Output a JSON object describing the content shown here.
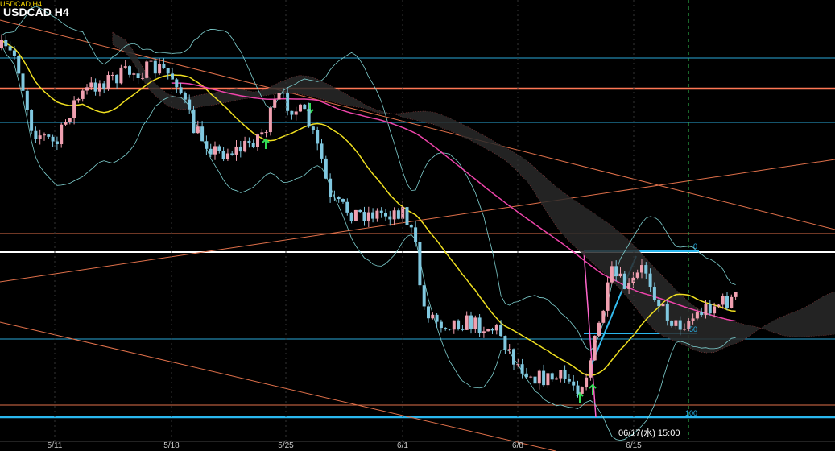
{
  "header": {
    "symbol_small": "USDCAD,H4",
    "title": "USDCAD H4"
  },
  "x_axis": {
    "labels": [
      "5/11",
      "5/18",
      "5/25",
      "6/1",
      "6/8",
      "6/15"
    ]
  },
  "fibonacci": {
    "levels": [
      0,
      50,
      100
    ]
  },
  "crosshair": {
    "time": "06/17(水) 15:00"
  }
}
